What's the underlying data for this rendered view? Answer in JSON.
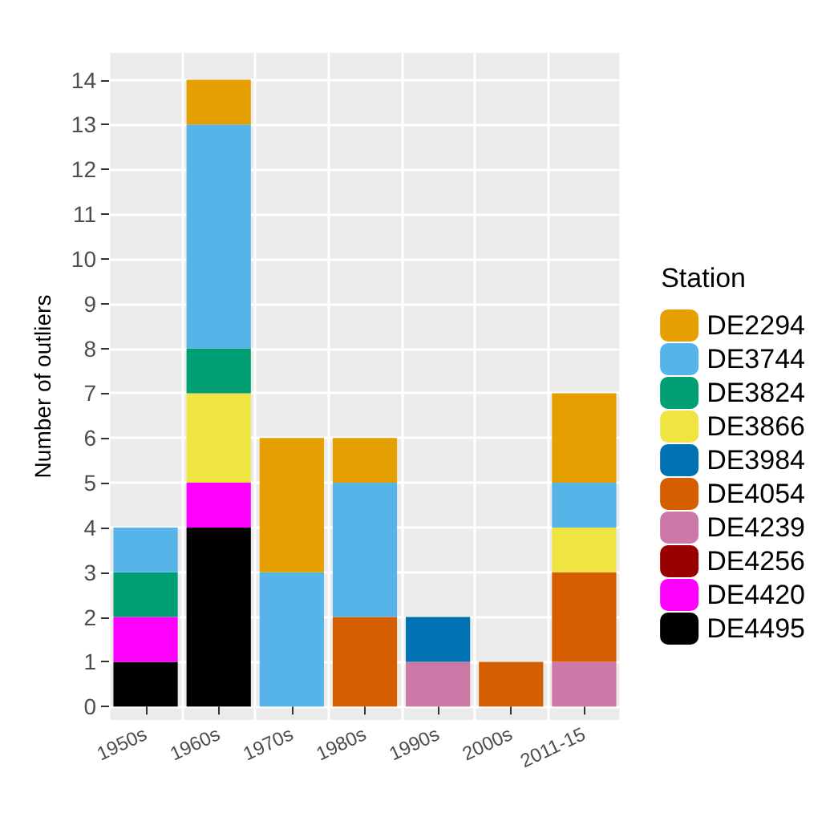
{
  "chart_data": {
    "type": "bar",
    "stacked": true,
    "ylabel": "Number of outliers",
    "legend_title": "Station",
    "legend": "right",
    "grid": true,
    "categories": [
      "1950s",
      "1960s",
      "1970s",
      "1980s",
      "1990s",
      "2000s",
      "2011-15"
    ],
    "ylim": [
      -0.3,
      14.6
    ],
    "yticks": [
      0,
      1,
      2,
      3,
      4,
      5,
      6,
      7,
      8,
      9,
      10,
      11,
      12,
      13,
      14
    ],
    "series": [
      {
        "name": "DE4495",
        "color": "#000000",
        "values": [
          1,
          4,
          0,
          0,
          0,
          0,
          0
        ]
      },
      {
        "name": "DE4420",
        "color": "#ff00ff",
        "values": [
          1,
          1,
          0,
          0,
          0,
          0,
          0
        ]
      },
      {
        "name": "DE4256",
        "color": "#990000",
        "values": [
          0,
          0,
          0,
          0,
          0,
          0,
          0
        ]
      },
      {
        "name": "DE4239",
        "color": "#cc79a7",
        "values": [
          0,
          0,
          0,
          0,
          1,
          0,
          1
        ]
      },
      {
        "name": "DE4054",
        "color": "#d55e00",
        "values": [
          0,
          0,
          0,
          2,
          0,
          1,
          2
        ]
      },
      {
        "name": "DE3984",
        "color": "#0072b2",
        "values": [
          0,
          0,
          0,
          0,
          1,
          0,
          0
        ]
      },
      {
        "name": "DE3866",
        "color": "#f0e442",
        "values": [
          0,
          2,
          0,
          0,
          0,
          0,
          1
        ]
      },
      {
        "name": "DE3824",
        "color": "#009e73",
        "values": [
          1,
          1,
          0,
          0,
          0,
          0,
          0
        ]
      },
      {
        "name": "DE3744",
        "color": "#56b4e9",
        "values": [
          1,
          5,
          3,
          3,
          0,
          0,
          1
        ]
      },
      {
        "name": "DE2294",
        "color": "#e69f00",
        "values": [
          0,
          1,
          3,
          1,
          0,
          0,
          2
        ]
      }
    ]
  }
}
